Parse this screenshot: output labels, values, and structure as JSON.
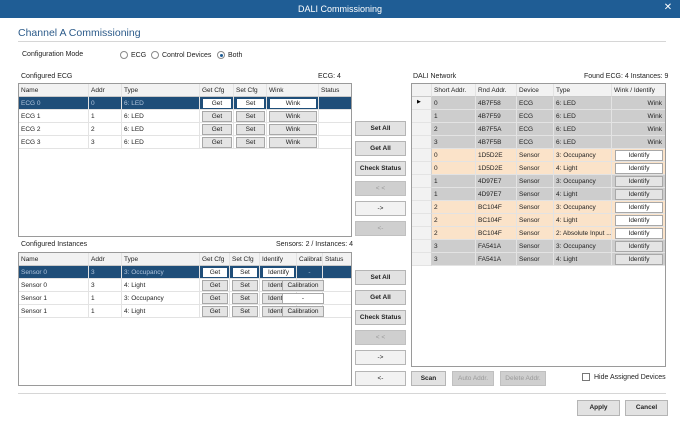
{
  "window": {
    "title": "DALI Commissioning",
    "close_glyph": "✕"
  },
  "channel_title": "Channel A Commissioning",
  "mode": {
    "label": "Configuration Mode",
    "options": [
      "ECG",
      "Control Devices",
      "Both"
    ],
    "selected": "Both"
  },
  "ecg": {
    "title": "Configured ECG",
    "count": "ECG: 4",
    "columns": [
      "Name",
      "Addr",
      "Type",
      "Get Cfg",
      "Set Cfg",
      "Wink",
      "Status"
    ],
    "rows": [
      {
        "name": "ECG 0",
        "addr": "0",
        "type": "6: LED",
        "get": "Get",
        "set": "Set",
        "wink": "Wink",
        "status": ""
      },
      {
        "name": "ECG 1",
        "addr": "1",
        "type": "6: LED",
        "get": "Get",
        "set": "Set",
        "wink": "Wink",
        "status": ""
      },
      {
        "name": "ECG 2",
        "addr": "2",
        "type": "6: LED",
        "get": "Get",
        "set": "Set",
        "wink": "Wink",
        "status": ""
      },
      {
        "name": "ECG 3",
        "addr": "3",
        "type": "6: LED",
        "get": "Get",
        "set": "Set",
        "wink": "Wink",
        "status": ""
      }
    ]
  },
  "instances": {
    "title": "Configured Instances",
    "count": "Sensors: 2 / Instances: 4",
    "columns": [
      "Name",
      "Addr",
      "Type",
      "Get Cfg",
      "Set Cfg",
      "Identify",
      "Calibration",
      "Status"
    ],
    "rows": [
      {
        "name": "Sensor 0",
        "addr": "3",
        "type": "3: Occupancy",
        "get": "Get",
        "set": "Set",
        "identify": "Identify",
        "calibration": "-",
        "status": ""
      },
      {
        "name": "Sensor 0",
        "addr": "3",
        "type": "4: Light",
        "get": "Get",
        "set": "Set",
        "identify": "Identify",
        "calibration": "Calibration",
        "status": ""
      },
      {
        "name": "Sensor 1",
        "addr": "1",
        "type": "3: Occupancy",
        "get": "Get",
        "set": "Set",
        "identify": "Identify",
        "calibration": "-",
        "status": ""
      },
      {
        "name": "Sensor 1",
        "addr": "1",
        "type": "4: Light",
        "get": "Get",
        "set": "Set",
        "identify": "Identify",
        "calibration": "Calibration",
        "status": ""
      }
    ]
  },
  "mid_buttons_top": {
    "set_all": "Set All",
    "get_all": "Get All",
    "check_status": "Check Status",
    "move_left_all": "< <",
    "move_right": "->",
    "move_left": "<-"
  },
  "mid_buttons_bottom": {
    "set_all": "Set All",
    "get_all": "Get All",
    "check_status": "Check Status",
    "move_left_all": "< <",
    "move_right": "->",
    "move_left": "<-"
  },
  "network": {
    "title": "DALI Network",
    "count": "Found ECG: 4 Instances: 9",
    "columns": [
      "Short Addr.",
      "Rnd Addr.",
      "Device",
      "Type",
      "Wink / Identify"
    ],
    "rows": [
      {
        "short": "0",
        "rnd": "4B7F58",
        "device": "ECG",
        "type": "6: LED",
        "action": "Wink",
        "kind": "ecg"
      },
      {
        "short": "1",
        "rnd": "4B7F59",
        "device": "ECG",
        "type": "6: LED",
        "action": "Wink",
        "kind": "ecg"
      },
      {
        "short": "2",
        "rnd": "4B7F5A",
        "device": "ECG",
        "type": "6: LED",
        "action": "Wink",
        "kind": "ecg"
      },
      {
        "short": "3",
        "rnd": "4B7F5B",
        "device": "ECG",
        "type": "6: LED",
        "action": "Wink",
        "kind": "ecg"
      },
      {
        "short": "0",
        "rnd": "1D5D2E",
        "device": "Sensor",
        "type": "3: Occupancy",
        "action": "Identify",
        "kind": "unassigned"
      },
      {
        "short": "0",
        "rnd": "1D5D2E",
        "device": "Sensor",
        "type": "4: Light",
        "action": "Identify",
        "kind": "unassigned"
      },
      {
        "short": "1",
        "rnd": "4D97E7",
        "device": "Sensor",
        "type": "3: Occupancy",
        "action": "Identify",
        "kind": "assigned"
      },
      {
        "short": "1",
        "rnd": "4D97E7",
        "device": "Sensor",
        "type": "4: Light",
        "action": "Identify",
        "kind": "assigned"
      },
      {
        "short": "2",
        "rnd": "BC104F",
        "device": "Sensor",
        "type": "3: Occupancy",
        "action": "Identify",
        "kind": "unassigned"
      },
      {
        "short": "2",
        "rnd": "BC104F",
        "device": "Sensor",
        "type": "4: Light",
        "action": "Identify",
        "kind": "unassigned"
      },
      {
        "short": "2",
        "rnd": "BC104F",
        "device": "Sensor",
        "type": "2: Absolute Input ...",
        "action": "Identify",
        "kind": "unassigned"
      },
      {
        "short": "3",
        "rnd": "FA541A",
        "device": "Sensor",
        "type": "3: Occupancy",
        "action": "Identify",
        "kind": "assigned"
      },
      {
        "short": "3",
        "rnd": "FA541A",
        "device": "Sensor",
        "type": "4: Light",
        "action": "Identify",
        "kind": "assigned"
      }
    ]
  },
  "network_buttons": {
    "scan": "Scan",
    "auto_addr": "Auto Addr.",
    "delete_addr": "Delete Addr."
  },
  "hide_assigned": {
    "label": "Hide Assigned Devices",
    "checked": false
  },
  "footer": {
    "apply": "Apply",
    "cancel": "Cancel"
  }
}
